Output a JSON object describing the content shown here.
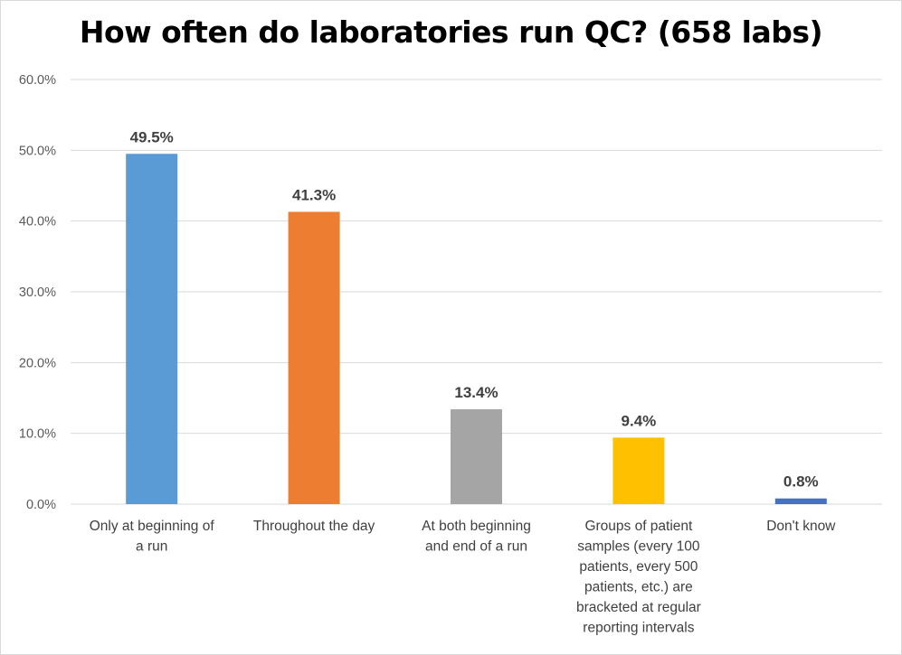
{
  "chart_data": {
    "type": "bar",
    "title": "How often do laboratories run QC? (658 labs)",
    "xlabel": "",
    "ylabel": "",
    "categories": [
      [
        "Only at beginning of",
        "a run"
      ],
      [
        "Throughout the day"
      ],
      [
        "At both  beginning",
        "and end of a run"
      ],
      [
        "Groups of patient",
        "samples (every 100",
        "patients, every 500",
        "patients, etc.) are",
        "bracketed at regular",
        "reporting intervals"
      ],
      [
        "Don't know"
      ]
    ],
    "values": [
      49.5,
      41.3,
      13.4,
      9.4,
      0.8
    ],
    "data_labels": [
      "49.5%",
      "41.3%",
      "13.4%",
      "9.4%",
      "0.8%"
    ],
    "colors": [
      "#5B9BD5",
      "#ED7D31",
      "#A5A5A5",
      "#FFC000",
      "#4472C4"
    ],
    "ylim": [
      0,
      60
    ],
    "yticks": [
      "0.0%",
      "10.0%",
      "20.0%",
      "30.0%",
      "40.0%",
      "50.0%",
      "60.0%"
    ],
    "grid": true,
    "legend": "none"
  }
}
